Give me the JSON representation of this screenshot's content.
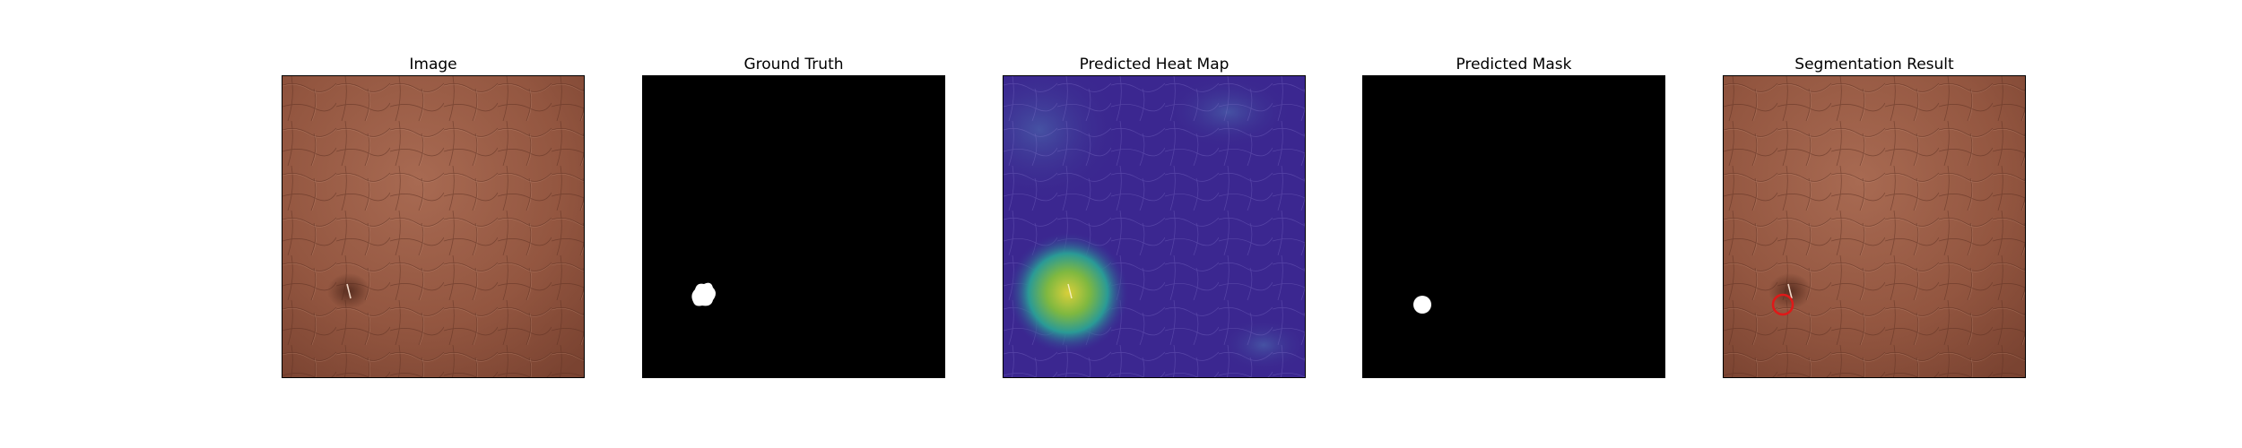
{
  "panels": [
    {
      "id": "image",
      "title": "Image"
    },
    {
      "id": "ground-truth",
      "title": "Ground Truth"
    },
    {
      "id": "heat-map",
      "title": "Predicted Heat Map"
    },
    {
      "id": "predicted-mask",
      "title": "Predicted Mask"
    },
    {
      "id": "segmentation",
      "title": "Segmentation Result"
    }
  ],
  "colors": {
    "leather_base": "#9a5a44",
    "leather_dark": "#6e3d2c",
    "leather_light": "#b87a62",
    "mask_bg": "#000000",
    "mask_fg": "#ffffff",
    "heat_low": "#3b1f8f",
    "heat_mid": "#2aa198",
    "heat_high": "#c8c23a",
    "segmentation_outline": "#e01818"
  }
}
